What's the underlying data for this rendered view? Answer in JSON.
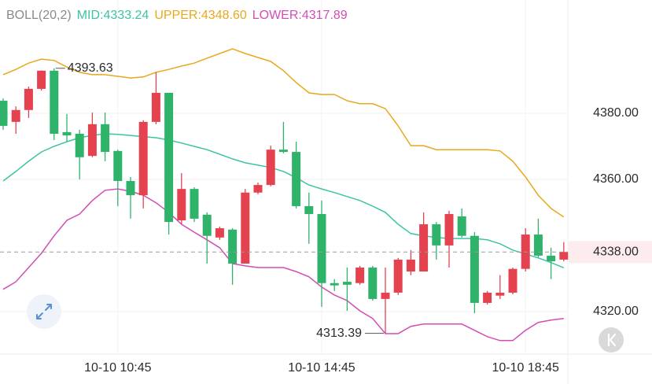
{
  "chart_data": {
    "type": "candlestick",
    "legend_title": "BOLL(20,2)",
    "categories": [
      null,
      null,
      null,
      null,
      null,
      null,
      null,
      null,
      null,
      "10-10 10:45",
      null,
      null,
      null,
      null,
      null,
      null,
      null,
      null,
      null,
      null,
      null,
      null,
      null,
      null,
      null,
      "10-10 14:45",
      null,
      null,
      null,
      null,
      null,
      null,
      null,
      null,
      null,
      null,
      null,
      null,
      null,
      null,
      null,
      "10-10 18:45",
      null,
      null,
      null
    ],
    "open": [
      4383.8,
      4377.4,
      4381.0,
      4387.4,
      4392.9,
      4374.3,
      4373.8,
      4367.1,
      4376.7,
      4368.6,
      4359.5,
      4355.2,
      4377.4,
      4386.2,
      4347.6,
      4357.1,
      4349.3,
      4342.4,
      4344.8,
      4334.5,
      4356.0,
      4358.3,
      4369.0,
      4368.3,
      4351.9,
      4349.5,
      4328.6,
      4329.0,
      4328.6,
      4333.3,
      4323.8,
      4325.7,
      4332.1,
      4332.1,
      4346.4,
      4340.0,
      4348.8,
      4342.9,
      4322.6,
      4324.8,
      4325.7,
      4332.9,
      4343.3,
      4336.9,
      4335.7
    ],
    "high": [
      4384.5,
      4382.1,
      4388.1,
      4393.0,
      4393.63,
      4379.8,
      4375.0,
      4380.2,
      4380.2,
      4369.0,
      4360.7,
      4377.9,
      4392.4,
      4386.2,
      4361.9,
      4357.6,
      4350.0,
      4345.7,
      4345.2,
      4357.1,
      4359.0,
      4370.2,
      4377.4,
      4371.4,
      4356.0,
      4353.6,
      4329.8,
      4333.3,
      4333.8,
      4333.8,
      4333.3,
      4336.2,
      4338.6,
      4350.0,
      4347.1,
      4350.5,
      4351.2,
      4344.0,
      4326.2,
      4331.0,
      4333.3,
      4345.2,
      4348.1,
      4339.3,
      4341.0
    ],
    "low": [
      4375.0,
      4373.8,
      4378.6,
      4386.9,
      4371.9,
      4371.4,
      4360.0,
      4366.7,
      4365.5,
      4351.9,
      4348.1,
      4351.2,
      4376.7,
      4343.3,
      4346.4,
      4347.1,
      4334.5,
      4341.7,
      4328.1,
      4334.5,
      4355.5,
      4357.9,
      4367.9,
      4351.2,
      4340.5,
      4321.4,
      4326.2,
      4320.2,
      4328.1,
      4323.3,
      4313.39,
      4325.0,
      4331.0,
      4332.1,
      4335.7,
      4333.3,
      4342.4,
      4319.5,
      4322.1,
      4323.8,
      4325.2,
      4332.1,
      4336.4,
      4329.8,
      4335.2
    ],
    "close": [
      4376.2,
      4381.0,
      4387.4,
      4392.9,
      4373.8,
      4373.3,
      4366.7,
      4376.7,
      4368.3,
      4359.5,
      4355.2,
      4377.4,
      4386.2,
      4347.1,
      4357.1,
      4348.1,
      4342.9,
      4345.2,
      4334.5,
      4356.0,
      4358.3,
      4369.0,
      4368.3,
      4351.9,
      4349.5,
      4328.6,
      4327.9,
      4328.1,
      4333.3,
      4323.8,
      4325.7,
      4335.7,
      4335.7,
      4346.4,
      4340.0,
      4349.5,
      4342.9,
      4322.6,
      4325.7,
      4325.7,
      4332.9,
      4343.3,
      4336.9,
      4335.2,
      4338
    ],
    "up_color": "#e5424f",
    "down_color": "#2fb36a",
    "series": [
      {
        "name": "MID:4333.24",
        "color": "#3cc4a4",
        "values": [
          4359.5,
          4362.4,
          4365.5,
          4368.3,
          4370.0,
          4371.4,
          4372.6,
          4373.3,
          4373.8,
          4373.6,
          4373.3,
          4372.9,
          4372.6,
          4371.9,
          4371.0,
          4370.0,
          4369.0,
          4367.6,
          4366.2,
          4365.0,
          4364.3,
          4363.6,
          4362.4,
          4360.5,
          4358.3,
          4357.1,
          4356.0,
          4354.8,
          4353.6,
          4351.9,
          4350.0,
          4346.4,
          4343.6,
          4342.9,
          4342.4,
          4342.1,
          4342.1,
          4342.1,
          4341.7,
          4340.5,
          4338.6,
          4337.4,
          4336.2,
          4334.8,
          4333.24
        ]
      },
      {
        "name": "UPPER:4348.60",
        "color": "#e9a81c",
        "values": [
          4391.7,
          4393.3,
          4395.2,
          4396.4,
          4396.0,
          4394.0,
          4392.4,
          4391.7,
          4391.7,
          4391.2,
          4390.7,
          4391.0,
          4392.4,
          4393.3,
          4394.3,
          4395.2,
          4396.7,
          4398.1,
          4399.5,
          4398.1,
          4396.9,
          4395.7,
          4392.9,
          4389.3,
          4386.2,
          4385.7,
          4385.7,
          4383.8,
          4382.9,
          4382.9,
          4381.4,
          4376.2,
          4370.2,
          4370.2,
          4369.0,
          4369.0,
          4369.0,
          4369.0,
          4369.0,
          4368.6,
          4365.5,
          4360.7,
          4355.2,
          4351.2,
          4348.6
        ]
      },
      {
        "name": "LOWER:4317.89",
        "color": "#d24db4",
        "values": [
          4326.7,
          4329.0,
          4333.3,
          4337.6,
          4342.9,
          4347.6,
          4349.5,
          4353.6,
          4356.7,
          4357.1,
          4356.4,
          4355.2,
          4352.9,
          4350.0,
          4346.4,
          4344.0,
          4341.7,
          4339.3,
          4334.5,
          4333.8,
          4333.3,
          4333.3,
          4333.3,
          4332.1,
          4330.5,
          4327.4,
          4325.0,
          4323.3,
          4320.2,
          4317.9,
          4313.3,
          4313.3,
          4315.5,
          4316.2,
          4316.2,
          4316.2,
          4316.2,
          4314.3,
          4312.4,
          4311.2,
          4311.2,
          4314.3,
          4316.7,
          4317.4,
          4317.89
        ]
      }
    ],
    "ylim": [
      4307.1,
      4414.3
    ],
    "yticks": [
      {
        "value": 4380,
        "label": "4380.00"
      },
      {
        "value": 4360,
        "label": "4360.00"
      },
      {
        "value": 4320,
        "label": "4320.00"
      }
    ],
    "price_line": {
      "value": 4338,
      "label": "4338.00"
    },
    "grid": true
  }
}
